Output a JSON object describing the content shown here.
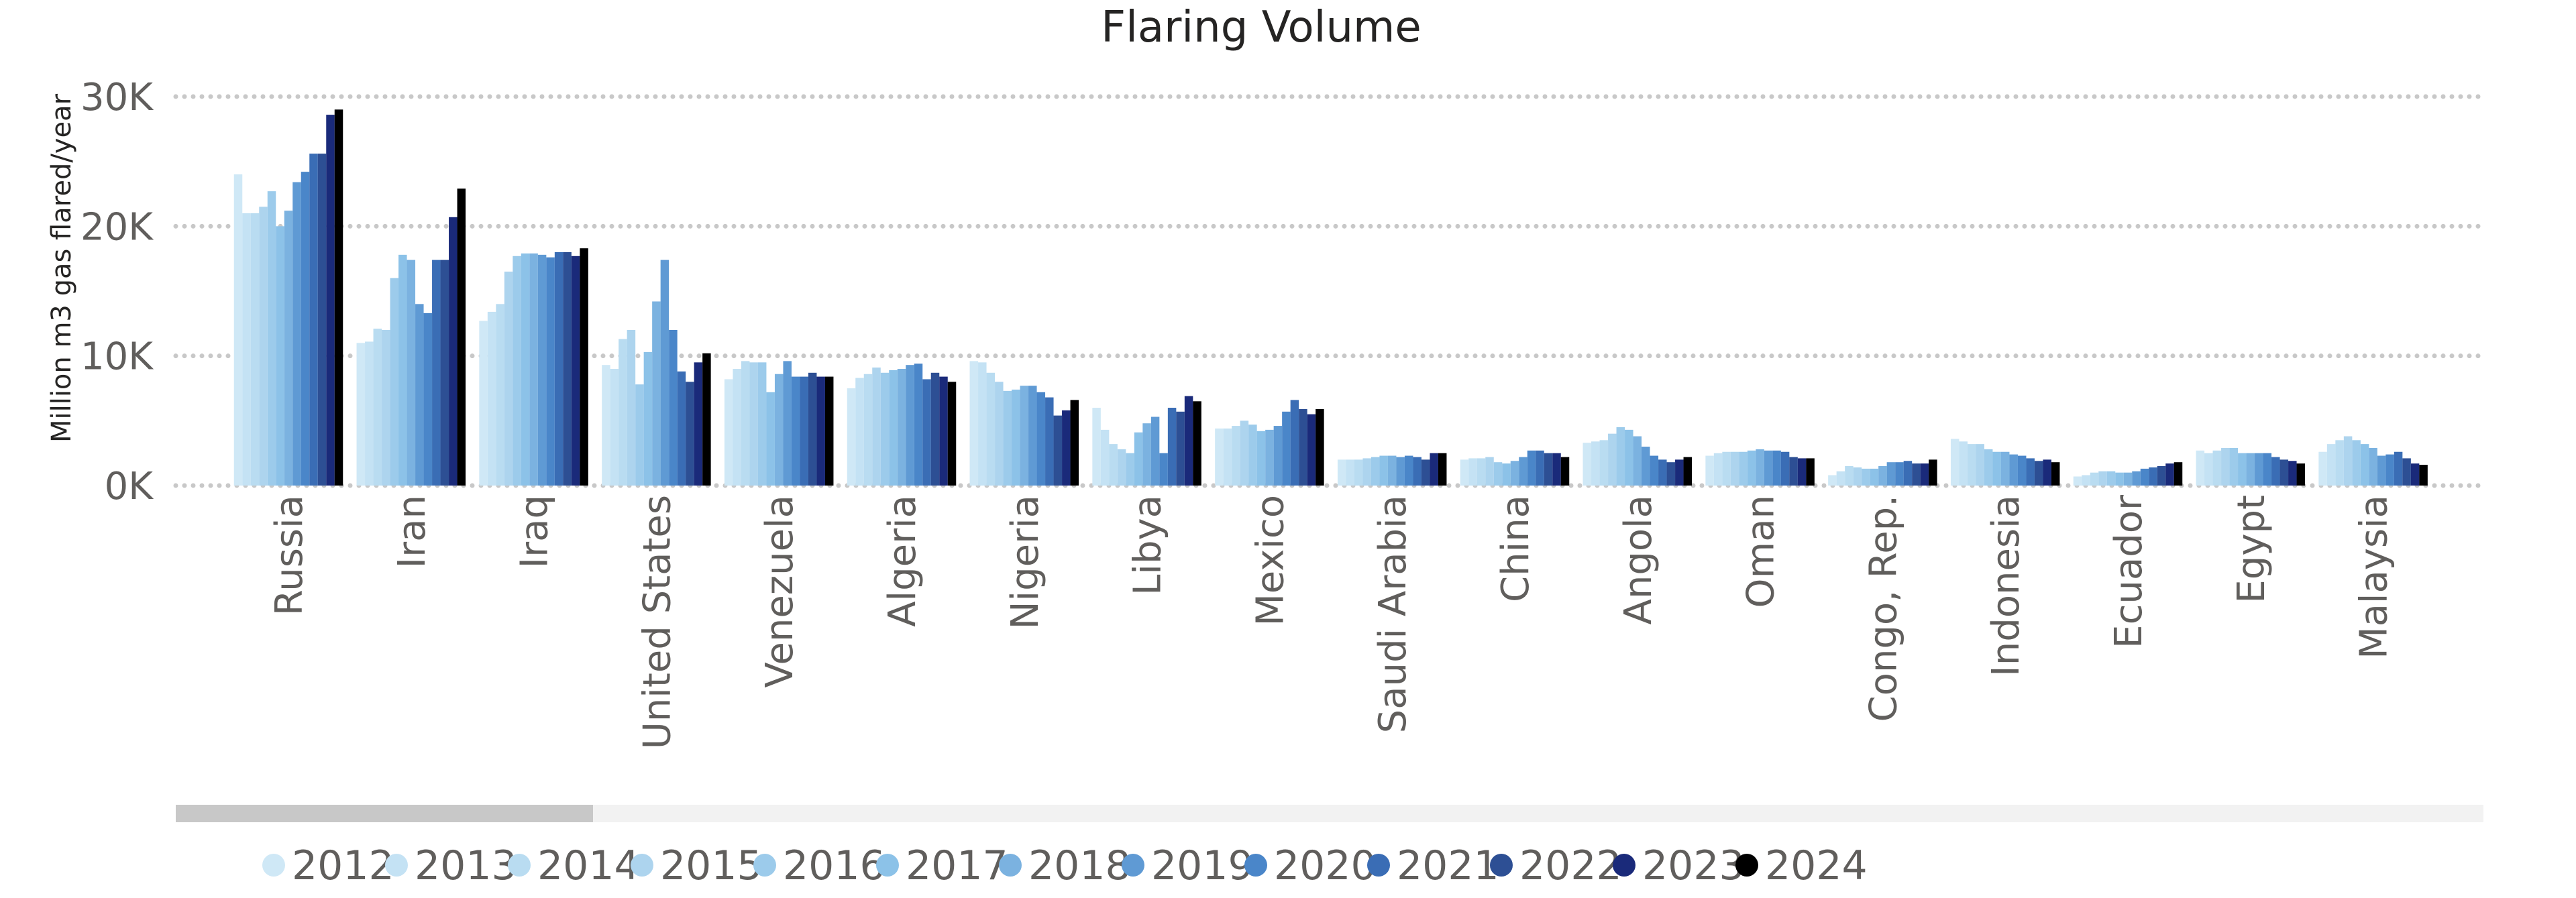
{
  "chart_data": {
    "type": "bar",
    "title": "Flaring Volume",
    "xlabel": "",
    "ylabel": "Million m3 gas flared/year",
    "ylim": [
      0,
      30000
    ],
    "yticks": [
      {
        "value": 0,
        "label": "0K"
      },
      {
        "value": 10000,
        "label": "10K"
      },
      {
        "value": 20000,
        "label": "20K"
      },
      {
        "value": 30000,
        "label": "30K"
      }
    ],
    "grid": true,
    "legend_position": "bottom",
    "categories": [
      "Russia",
      "Iran",
      "Iraq",
      "United States",
      "Venezuela",
      "Algeria",
      "Nigeria",
      "Libya",
      "Mexico",
      "Saudi Arabia",
      "China",
      "Angola",
      "Oman",
      "Congo, Rep.",
      "Indonesia",
      "Ecuador",
      "Egypt",
      "Malaysia"
    ],
    "series": [
      {
        "name": "2012",
        "color": "#cfe8f6",
        "values": [
          24000,
          11000,
          12700,
          9300,
          8200,
          7500,
          9600,
          6000,
          4400,
          2000,
          2000,
          3300,
          2300,
          800,
          3600,
          700,
          2700,
          2600
        ]
      },
      {
        "name": "2013",
        "color": "#c4e2f4",
        "values": [
          21000,
          11100,
          13400,
          9000,
          9000,
          8300,
          9500,
          4300,
          4400,
          2000,
          2100,
          3400,
          2500,
          1100,
          3400,
          800,
          2500,
          3200
        ]
      },
      {
        "name": "2014",
        "color": "#b9dcf1",
        "values": [
          21000,
          12100,
          14000,
          11300,
          9600,
          8600,
          8700,
          3200,
          4600,
          2000,
          2100,
          3500,
          2600,
          1500,
          3200,
          1000,
          2700,
          3500
        ]
      },
      {
        "name": "2015",
        "color": "#add4ee",
        "values": [
          21500,
          12000,
          16500,
          12000,
          9500,
          9100,
          8000,
          2800,
          5000,
          2100,
          2200,
          4000,
          2600,
          1400,
          3200,
          1100,
          2900,
          3800
        ]
      },
      {
        "name": "2016",
        "color": "#9ccbeb",
        "values": [
          22700,
          16000,
          17700,
          7800,
          9500,
          8700,
          7300,
          2500,
          4700,
          2200,
          1800,
          4500,
          2600,
          1300,
          2800,
          1100,
          2900,
          3500
        ]
      },
      {
        "name": "2017",
        "color": "#8cc2e8",
        "values": [
          20000,
          17800,
          17900,
          10300,
          7200,
          8900,
          7400,
          4100,
          4200,
          2300,
          1700,
          4300,
          2700,
          1300,
          2600,
          1000,
          2500,
          3200
        ]
      },
      {
        "name": "2018",
        "color": "#7bb2e0",
        "values": [
          21200,
          17400,
          17900,
          14200,
          8600,
          9000,
          7700,
          4800,
          4300,
          2300,
          1900,
          3800,
          2800,
          1500,
          2600,
          1000,
          2500,
          2900
        ]
      },
      {
        "name": "2019",
        "color": "#5f9ad4",
        "values": [
          23400,
          14000,
          17800,
          17400,
          9600,
          9300,
          7700,
          5300,
          4600,
          2200,
          2200,
          3000,
          2700,
          1800,
          2400,
          1100,
          2500,
          2300
        ]
      },
      {
        "name": "2020",
        "color": "#4a86c9",
        "values": [
          24200,
          13300,
          17600,
          12000,
          8400,
          9400,
          7200,
          2500,
          5700,
          2300,
          2700,
          2300,
          2700,
          1800,
          2300,
          1300,
          2500,
          2400
        ]
      },
      {
        "name": "2021",
        "color": "#3a6db5",
        "values": [
          25600,
          17400,
          18000,
          8800,
          8400,
          8200,
          6800,
          6000,
          6600,
          2200,
          2700,
          2000,
          2600,
          1900,
          2100,
          1400,
          2200,
          2600
        ]
      },
      {
        "name": "2022",
        "color": "#2d4f94",
        "values": [
          25600,
          17400,
          18000,
          8000,
          8700,
          8700,
          5400,
          5700,
          5900,
          2000,
          2500,
          1800,
          2200,
          1700,
          1900,
          1500,
          2000,
          2100
        ]
      },
      {
        "name": "2023",
        "color": "#1a2a7a",
        "values": [
          28600,
          20700,
          17700,
          9500,
          8400,
          8400,
          5800,
          6900,
          5500,
          2500,
          2500,
          2000,
          2100,
          1700,
          2000,
          1700,
          1900,
          1700
        ]
      },
      {
        "name": "2024",
        "color": "#000000",
        "values": [
          29000,
          22900,
          18300,
          10200,
          8400,
          8000,
          6600,
          6500,
          5900,
          2500,
          2200,
          2200,
          2100,
          2000,
          1800,
          1800,
          1700,
          1600
        ]
      }
    ]
  }
}
